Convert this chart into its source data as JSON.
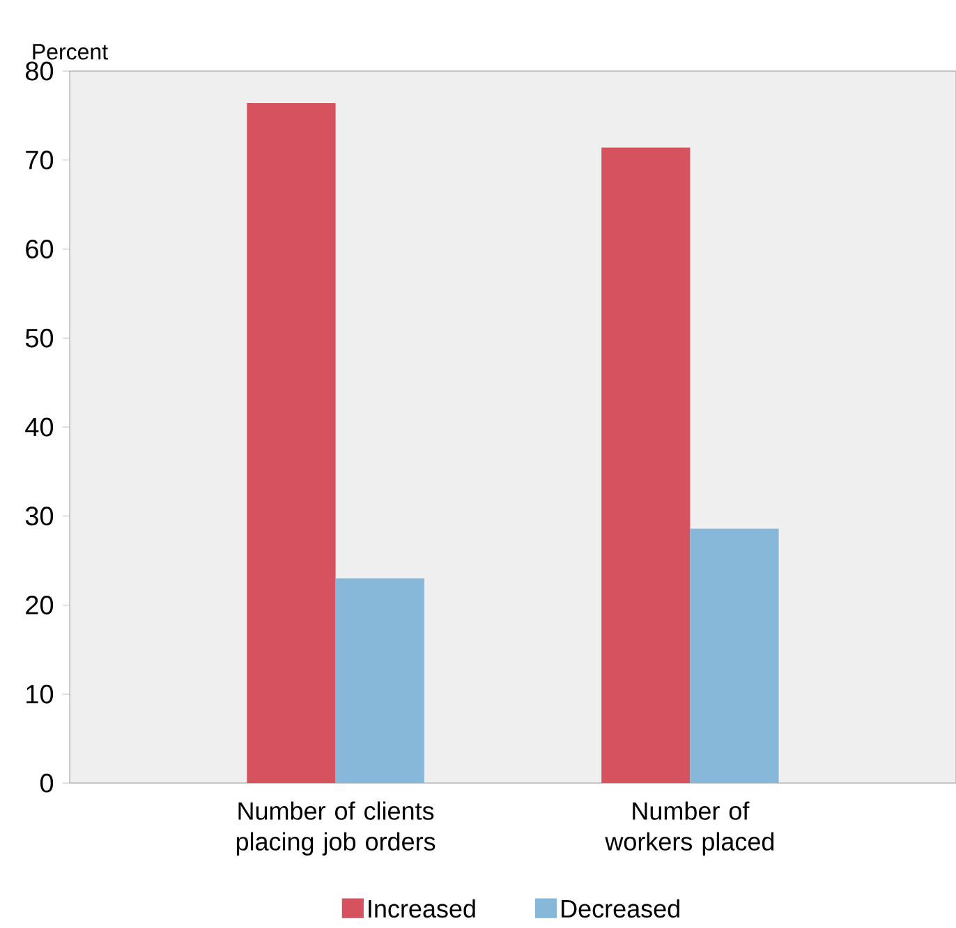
{
  "chart_data": {
    "type": "bar",
    "ylabel": "Percent",
    "categories": [
      "Number of clients placing job orders",
      "Number of workers placed"
    ],
    "series": [
      {
        "name": "Increased",
        "color": "#d6525e",
        "values": [
          76.4,
          71.4
        ]
      },
      {
        "name": "Decreased",
        "color": "#87b8da",
        "values": [
          23.0,
          28.6
        ]
      }
    ],
    "ylim": [
      0,
      80
    ],
    "yticks": [
      0,
      10,
      20,
      30,
      40,
      50,
      60,
      70,
      80
    ],
    "grid": false,
    "legend": "bottom"
  }
}
